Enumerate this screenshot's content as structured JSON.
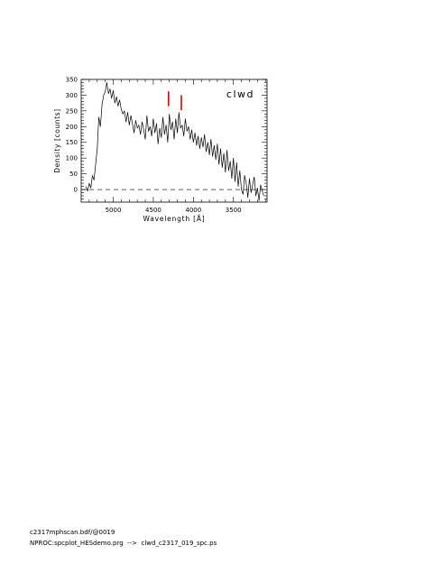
{
  "chart_data": {
    "type": "line",
    "xlabel": "Wavelength [Å]",
    "ylabel": "Density [counts]",
    "annotation": "clwd",
    "xlim": [
      5400,
      3080
    ],
    "ylim": [
      -40,
      350
    ],
    "x_reversed": true,
    "x_ticks": [
      5000,
      4500,
      4000,
      3500
    ],
    "y_ticks": [
      0,
      50,
      100,
      150,
      200,
      250,
      300,
      350
    ],
    "zero_line": 0,
    "marker_color": "#dd0000",
    "markers": [
      {
        "x": 4310,
        "y_from": 265,
        "y_to": 312
      },
      {
        "x": 4150,
        "y_from": 252,
        "y_to": 300
      }
    ],
    "series": [
      {
        "x": [
          5340,
          5320,
          5300,
          5280,
          5260,
          5240,
          5220,
          5200,
          5180,
          5160,
          5140,
          5120,
          5100,
          5080,
          5060,
          5040,
          5020,
          5000,
          4980,
          4960,
          4940,
          4920,
          4900,
          4880,
          4860,
          4840,
          4820,
          4800,
          4780,
          4760,
          4740,
          4720,
          4700,
          4680,
          4660,
          4640,
          4620,
          4600,
          4580,
          4560,
          4540,
          4520,
          4500,
          4480,
          4460,
          4440,
          4420,
          4400,
          4380,
          4360,
          4340,
          4320,
          4300,
          4280,
          4260,
          4240,
          4220,
          4200,
          4180,
          4160,
          4140,
          4120,
          4100,
          4080,
          4060,
          4040,
          4020,
          4000,
          3980,
          3960,
          3940,
          3920,
          3900,
          3880,
          3860,
          3840,
          3820,
          3800,
          3780,
          3760,
          3740,
          3720,
          3700,
          3680,
          3660,
          3640,
          3620,
          3600,
          3580,
          3560,
          3540,
          3520,
          3500,
          3480,
          3460,
          3440,
          3420,
          3400,
          3380,
          3360,
          3340,
          3320,
          3300,
          3280,
          3260,
          3240,
          3220,
          3200,
          3180,
          3160,
          3140,
          3120
        ],
        "values": [
          10,
          -5,
          20,
          5,
          45,
          30,
          80,
          130,
          230,
          200,
          270,
          300,
          310,
          340,
          305,
          320,
          290,
          315,
          275,
          295,
          265,
          285,
          255,
          240,
          250,
          215,
          245,
          205,
          235,
          210,
          180,
          220,
          195,
          205,
          175,
          215,
          190,
          160,
          235,
          185,
          200,
          170,
          225,
          180,
          210,
          145,
          195,
          165,
          230,
          175,
          205,
          150,
          240,
          190,
          215,
          160,
          225,
          180,
          245,
          195,
          205,
          170,
          225,
          185,
          200,
          160,
          190,
          150,
          180,
          140,
          170,
          130,
          165,
          135,
          175,
          120,
          150,
          110,
          160,
          105,
          140,
          95,
          145,
          80,
          130,
          70,
          115,
          55,
          125,
          60,
          90,
          35,
          100,
          25,
          85,
          10,
          60,
          0,
          -15,
          45,
          20,
          -25,
          35,
          -10,
          15,
          40,
          -20,
          5,
          -35,
          15,
          -5,
          -20
        ]
      }
    ]
  },
  "footer": {
    "line1": "c2317mphscan.bdf/@0019",
    "line2": "NPROC:spcplot_HESdemo.prg  -->  clwd_c2317_019_spc.ps"
  }
}
